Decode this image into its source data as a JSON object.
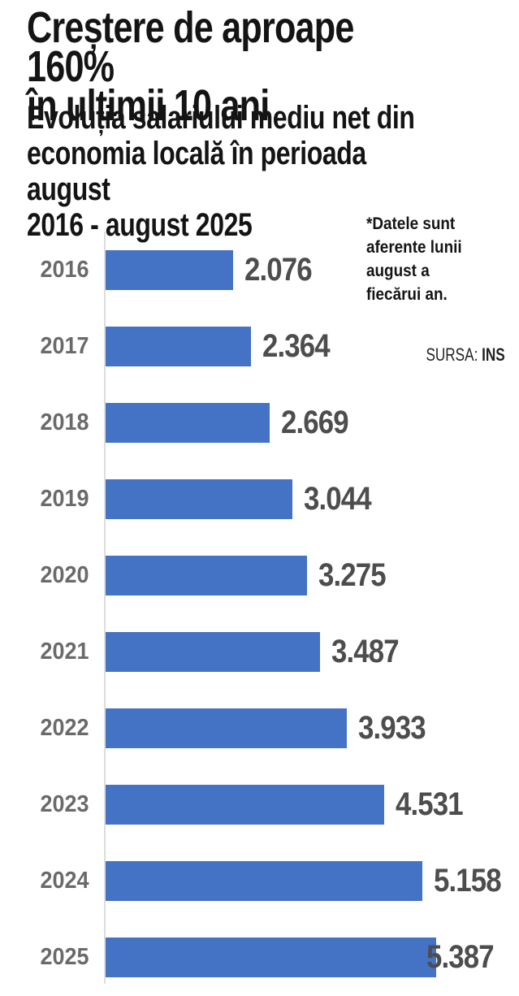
{
  "header": {
    "title": "Creștere de aproape 160%\nîn ultimii 10 ani",
    "subtitle": "Evoluția salariului mediu net din\neconomia locală în perioada august\n2016 - august 2025"
  },
  "note": "*Datele sunt\naferente lunii\naugust a\nfiecărui an.",
  "source": {
    "label": "SURSA:",
    "value": "INS"
  },
  "colors": {
    "bar": "#4472C4",
    "axis_line": "#dcdcdc",
    "year_label": "#6a6a6a",
    "value_label": "#4d4d4d",
    "text": "#141414"
  },
  "chart_data": {
    "type": "bar",
    "orientation": "horizontal",
    "title": "Creștere de aproape 160% în ultimii 10 ani",
    "subtitle": "Evoluția salariului mediu net din economia locală în perioada august 2016 - august 2025",
    "categories": [
      "2016",
      "2017",
      "2018",
      "2019",
      "2020",
      "2021",
      "2022",
      "2023",
      "2024",
      "2025"
    ],
    "values": [
      2076,
      2364,
      2669,
      3044,
      3275,
      3487,
      3933,
      4531,
      5158,
      5387
    ],
    "value_labels": [
      "2.076",
      "2.364",
      "2.669",
      "3.044",
      "3.275",
      "3.487",
      "3.933",
      "4.531",
      "5.158",
      "5.387"
    ],
    "xlabel": "",
    "ylabel": "",
    "xlim": [
      0,
      5500
    ],
    "grid": false,
    "legend": false,
    "annotation": "*Datele sunt aferente lunii august a fiecărui an.",
    "source": "SURSA: INS"
  }
}
